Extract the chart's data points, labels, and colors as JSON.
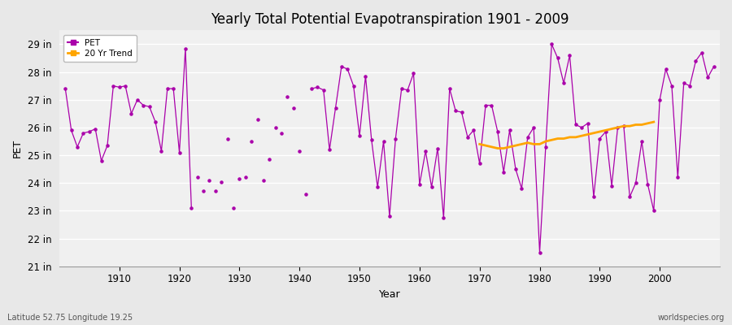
{
  "title": "Yearly Total Potential Evapotranspiration 1901 - 2009",
  "xlabel": "Year",
  "ylabel": "PET",
  "lat_lon_label": "Latitude 52.75 Longitude 19.25",
  "watermark": "worldspecies.org",
  "ylim": [
    21,
    29.5
  ],
  "yticks": [
    21,
    22,
    23,
    24,
    25,
    26,
    27,
    28,
    29
  ],
  "ytick_labels": [
    "21 in",
    "22 in",
    "23 in",
    "24 in",
    "25 in",
    "26 in",
    "27 in",
    "28 in",
    "29 in"
  ],
  "xlim": [
    1900,
    2010
  ],
  "pet_color": "#AA00AA",
  "trend_color": "#FFA500",
  "bg_color": "#E8E8E8",
  "plot_bg_color": "#F0F0F0",
  "grid_color": "#FFFFFF",
  "connected_segments": [
    [
      1901,
      27.4
    ],
    [
      1902,
      25.9
    ],
    [
      1903,
      25.3
    ],
    [
      1904,
      25.8
    ],
    [
      1905,
      25.85
    ],
    [
      1906,
      25.95
    ],
    [
      1907,
      24.8
    ],
    [
      1908,
      25.35
    ],
    [
      1909,
      27.5
    ],
    [
      1910,
      27.45
    ],
    [
      1911,
      27.5
    ],
    [
      1912,
      26.5
    ],
    [
      1913,
      27.0
    ],
    [
      1914,
      26.8
    ],
    [
      1915,
      26.75
    ],
    [
      1916,
      26.2
    ],
    [
      1917,
      25.15
    ],
    [
      1918,
      27.4
    ],
    [
      1919,
      27.4
    ],
    [
      1920,
      25.1
    ],
    [
      1921,
      28.85
    ],
    [
      1922,
      23.1
    ],
    null,
    [
      1942,
      27.4
    ],
    [
      1943,
      27.45
    ],
    [
      1944,
      27.35
    ],
    [
      1945,
      25.2
    ],
    [
      1946,
      26.7
    ],
    [
      1947,
      28.2
    ],
    [
      1948,
      28.1
    ],
    [
      1949,
      27.5
    ],
    [
      1950,
      25.7
    ],
    [
      1951,
      27.85
    ],
    [
      1952,
      25.55
    ],
    [
      1953,
      23.85
    ],
    [
      1954,
      25.5
    ],
    [
      1955,
      22.8
    ],
    [
      1956,
      25.6
    ],
    [
      1957,
      27.4
    ],
    [
      1958,
      27.35
    ],
    [
      1959,
      27.95
    ],
    [
      1960,
      23.95
    ],
    [
      1961,
      25.15
    ],
    [
      1962,
      23.85
    ],
    [
      1963,
      25.25
    ],
    [
      1964,
      22.75
    ],
    [
      1965,
      27.4
    ],
    [
      1966,
      26.6
    ],
    [
      1967,
      26.55
    ],
    [
      1968,
      25.65
    ],
    [
      1969,
      25.9
    ],
    [
      1970,
      24.7
    ],
    [
      1971,
      26.8
    ],
    [
      1972,
      26.8
    ],
    [
      1973,
      25.85
    ],
    [
      1974,
      24.4
    ],
    [
      1975,
      25.9
    ],
    [
      1976,
      24.5
    ],
    [
      1977,
      23.8
    ],
    [
      1978,
      25.65
    ],
    [
      1979,
      26.0
    ],
    [
      1980,
      21.5
    ],
    [
      1981,
      25.3
    ],
    [
      1982,
      29.0
    ],
    [
      1983,
      28.5
    ],
    [
      1984,
      27.6
    ],
    [
      1985,
      28.6
    ],
    [
      1986,
      26.1
    ],
    [
      1987,
      26.0
    ],
    [
      1988,
      26.15
    ],
    [
      1989,
      23.5
    ],
    [
      1990,
      25.6
    ],
    [
      1991,
      25.85
    ],
    [
      1992,
      23.9
    ],
    [
      1993,
      26.0
    ],
    [
      1994,
      26.05
    ],
    [
      1995,
      23.5
    ],
    [
      1996,
      24.0
    ],
    [
      1997,
      25.5
    ],
    [
      1998,
      23.95
    ],
    [
      1999,
      23.0
    ],
    [
      2000,
      27.0
    ],
    [
      2001,
      28.1
    ],
    [
      2002,
      27.5
    ],
    [
      2003,
      24.2
    ],
    [
      2004,
      27.6
    ],
    [
      2005,
      27.5
    ],
    [
      2006,
      28.4
    ],
    [
      2007,
      28.7
    ],
    [
      2008,
      27.8
    ],
    [
      2009,
      28.2
    ]
  ],
  "isolated_dots": [
    [
      1923,
      24.2
    ],
    [
      1924,
      23.7
    ],
    [
      1925,
      24.1
    ],
    [
      1926,
      23.7
    ],
    [
      1927,
      24.05
    ],
    [
      1928,
      25.6
    ],
    [
      1929,
      23.1
    ],
    [
      1930,
      24.15
    ],
    [
      1931,
      24.2
    ],
    [
      1932,
      25.5
    ],
    [
      1933,
      26.3
    ],
    [
      1934,
      24.1
    ],
    [
      1935,
      24.85
    ],
    [
      1936,
      26.0
    ],
    [
      1937,
      25.8
    ],
    [
      1938,
      27.1
    ],
    [
      1939,
      26.7
    ],
    [
      1940,
      25.15
    ],
    [
      1941,
      23.6
    ]
  ],
  "trend_data": [
    [
      1970,
      25.4
    ],
    [
      1971,
      25.35
    ],
    [
      1972,
      25.3
    ],
    [
      1973,
      25.25
    ],
    [
      1974,
      25.25
    ],
    [
      1975,
      25.3
    ],
    [
      1976,
      25.35
    ],
    [
      1977,
      25.4
    ],
    [
      1978,
      25.45
    ],
    [
      1979,
      25.4
    ],
    [
      1980,
      25.4
    ],
    [
      1981,
      25.5
    ],
    [
      1982,
      25.55
    ],
    [
      1983,
      25.6
    ],
    [
      1984,
      25.6
    ],
    [
      1985,
      25.65
    ],
    [
      1986,
      25.65
    ],
    [
      1987,
      25.7
    ],
    [
      1988,
      25.75
    ],
    [
      1989,
      25.8
    ],
    [
      1990,
      25.85
    ],
    [
      1991,
      25.9
    ],
    [
      1992,
      25.95
    ],
    [
      1993,
      26.0
    ],
    [
      1994,
      26.05
    ],
    [
      1995,
      26.05
    ],
    [
      1996,
      26.1
    ],
    [
      1997,
      26.1
    ],
    [
      1998,
      26.15
    ],
    [
      1999,
      26.2
    ]
  ]
}
